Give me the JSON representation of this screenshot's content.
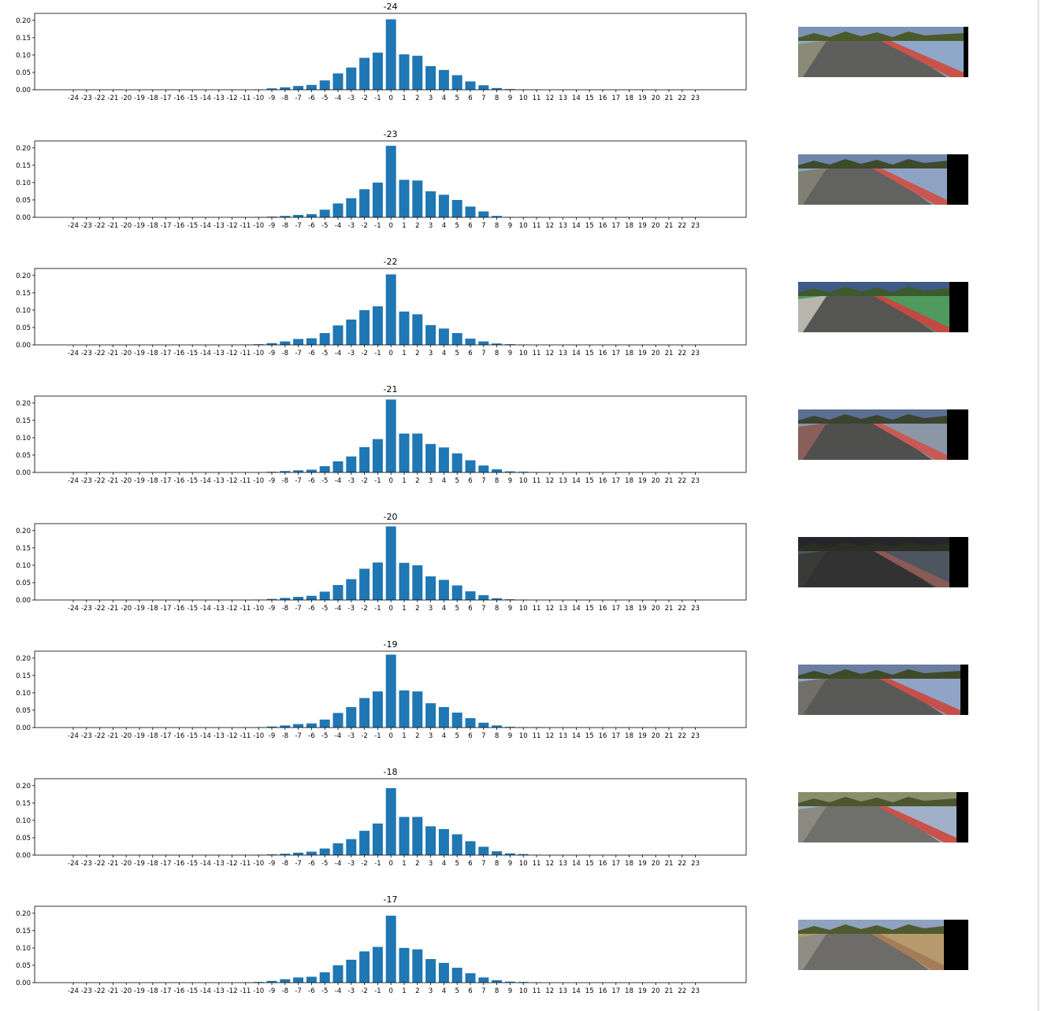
{
  "x_ticks": [
    "-24",
    "-23",
    "-22",
    "-21",
    "-20",
    "-19",
    "-18",
    "-17",
    "-16",
    "-15",
    "-14",
    "-13",
    "-12",
    "-11",
    "-10",
    "-9",
    "-8",
    "-7",
    "-6",
    "-5",
    "-4",
    "-3",
    "-2",
    "-1",
    "0",
    "1",
    "2",
    "3",
    "4",
    "5",
    "6",
    "7",
    "8",
    "9",
    "10",
    "11",
    "12",
    "13",
    "14",
    "15",
    "16",
    "17",
    "18",
    "19",
    "20",
    "21",
    "22",
    "23"
  ],
  "y_ticks": [
    "0.00",
    "0.05",
    "0.10",
    "0.15",
    "0.20"
  ],
  "bar_color": "#1f77b4",
  "chart_data": [
    {
      "type": "bar",
      "title": "-24",
      "ylim": [
        0,
        0.22
      ],
      "categories_ref": "x_ticks",
      "values": [
        0,
        0,
        0,
        0,
        0,
        0,
        0,
        0,
        0,
        0,
        0,
        0,
        0,
        0,
        0.001,
        0.004,
        0.007,
        0.011,
        0.014,
        0.027,
        0.047,
        0.064,
        0.092,
        0.107,
        0.203,
        0.102,
        0.098,
        0.068,
        0.057,
        0.042,
        0.024,
        0.013,
        0.005,
        0.002,
        0.001,
        0.001,
        0,
        0,
        0,
        0,
        0,
        0,
        0,
        0,
        0,
        0,
        0,
        0
      ]
    },
    {
      "type": "bar",
      "title": "-23",
      "ylim": [
        0,
        0.22
      ],
      "categories_ref": "x_ticks",
      "values": [
        0,
        0,
        0,
        0,
        0,
        0,
        0,
        0,
        0,
        0,
        0,
        0,
        0,
        0,
        0.001,
        0.002,
        0.004,
        0.007,
        0.009,
        0.022,
        0.04,
        0.055,
        0.081,
        0.1,
        0.206,
        0.108,
        0.106,
        0.075,
        0.065,
        0.05,
        0.031,
        0.017,
        0.004,
        0.001,
        0.001,
        0.001,
        0,
        0,
        0,
        0,
        0,
        0,
        0,
        0,
        0,
        0,
        0,
        0
      ]
    },
    {
      "type": "bar",
      "title": "-22",
      "ylim": [
        0,
        0.22
      ],
      "categories_ref": "x_ticks",
      "values": [
        0,
        0,
        0,
        0,
        0,
        0,
        0,
        0,
        0,
        0,
        0,
        0,
        0,
        0.001,
        0.002,
        0.005,
        0.01,
        0.017,
        0.019,
        0.034,
        0.056,
        0.073,
        0.1,
        0.111,
        0.203,
        0.096,
        0.088,
        0.057,
        0.047,
        0.034,
        0.018,
        0.01,
        0.004,
        0.002,
        0.001,
        0,
        0,
        0,
        0,
        0,
        0,
        0,
        0,
        0,
        0,
        0,
        0,
        0
      ]
    },
    {
      "type": "bar",
      "title": "-21",
      "ylim": [
        0,
        0.22
      ],
      "categories_ref": "x_ticks",
      "values": [
        0,
        0,
        0,
        0,
        0,
        0,
        0,
        0,
        0,
        0,
        0,
        0,
        0,
        0,
        0,
        0.002,
        0.004,
        0.006,
        0.008,
        0.018,
        0.032,
        0.046,
        0.073,
        0.096,
        0.21,
        0.112,
        0.112,
        0.082,
        0.072,
        0.055,
        0.035,
        0.02,
        0.009,
        0.003,
        0.002,
        0.001,
        0,
        0,
        0,
        0,
        0,
        0,
        0,
        0,
        0,
        0,
        0,
        0
      ]
    },
    {
      "type": "bar",
      "title": "-20",
      "ylim": [
        0,
        0.22
      ],
      "categories_ref": "x_ticks",
      "values": [
        0,
        0,
        0,
        0,
        0,
        0,
        0,
        0,
        0,
        0,
        0,
        0,
        0,
        0,
        0.001,
        0.003,
        0.006,
        0.009,
        0.012,
        0.024,
        0.043,
        0.06,
        0.09,
        0.108,
        0.212,
        0.107,
        0.1,
        0.068,
        0.058,
        0.042,
        0.025,
        0.014,
        0.005,
        0.002,
        0.001,
        0,
        0,
        0,
        0,
        0,
        0,
        0,
        0,
        0,
        0,
        0,
        0,
        0
      ]
    },
    {
      "type": "bar",
      "title": "-19",
      "ylim": [
        0,
        0.22
      ],
      "categories_ref": "x_ticks",
      "values": [
        0,
        0,
        0,
        0,
        0,
        0,
        0,
        0,
        0,
        0,
        0,
        0,
        0,
        0,
        0.001,
        0.003,
        0.006,
        0.01,
        0.012,
        0.023,
        0.042,
        0.059,
        0.085,
        0.104,
        0.21,
        0.107,
        0.104,
        0.07,
        0.059,
        0.043,
        0.027,
        0.014,
        0.006,
        0.002,
        0.001,
        0.001,
        0,
        0,
        0,
        0,
        0,
        0,
        0,
        0,
        0,
        0,
        0,
        0
      ]
    },
    {
      "type": "bar",
      "title": "-18",
      "ylim": [
        0,
        0.22
      ],
      "categories_ref": "x_ticks",
      "values": [
        0,
        0,
        0,
        0,
        0,
        0,
        0,
        0,
        0,
        0,
        0,
        0,
        0,
        0,
        0.001,
        0.002,
        0.004,
        0.007,
        0.01,
        0.019,
        0.034,
        0.046,
        0.07,
        0.091,
        0.193,
        0.11,
        0.11,
        0.083,
        0.075,
        0.06,
        0.04,
        0.024,
        0.011,
        0.005,
        0.003,
        0.001,
        0,
        0,
        0,
        0,
        0,
        0,
        0,
        0,
        0,
        0,
        0,
        0
      ]
    },
    {
      "type": "bar",
      "title": "-17",
      "ylim": [
        0,
        0.22
      ],
      "categories_ref": "x_ticks",
      "values": [
        0,
        0,
        0,
        0,
        0,
        0,
        0,
        0,
        0,
        0,
        0,
        0,
        0,
        0.001,
        0.002,
        0.005,
        0.01,
        0.015,
        0.017,
        0.03,
        0.05,
        0.066,
        0.09,
        0.103,
        0.193,
        0.1,
        0.096,
        0.068,
        0.057,
        0.043,
        0.027,
        0.015,
        0.007,
        0.003,
        0.002,
        0.001,
        0,
        0,
        0,
        0,
        0,
        0,
        0,
        0,
        0,
        0,
        0,
        0
      ]
    }
  ],
  "thumbnails": [
    {
      "name": "frame-1",
      "sky": "#7d93b5",
      "trees": "#4b5a2a",
      "left_bank": "#8a8a78",
      "road": "#5e5e5c",
      "right": "#8fa7c9",
      "stripe": "#c9524a",
      "black_w": 6
    },
    {
      "name": "frame-2",
      "sky": "#6f86ab",
      "trees": "#3e4a2c",
      "left_bank": "#7f7f74",
      "road": "#626260",
      "right": "#8ea3c4",
      "stripe": "#c9574f",
      "black_w": 27
    },
    {
      "name": "frame-3",
      "sky": "#3f5a86",
      "trees": "#3d5a2e",
      "left_bank": "#b6b6ad",
      "road": "#555553",
      "right": "#4f9a5c",
      "stripe": "#c24a43",
      "black_w": 24
    },
    {
      "name": "frame-4",
      "sky": "#5c6f93",
      "trees": "#3a4430",
      "left_bank": "#8a5f5a",
      "road": "#4f4f4e",
      "right": "#8b97a6",
      "stripe": "#c75a55",
      "black_w": 27
    },
    {
      "name": "frame-5",
      "sky": "#24262a",
      "trees": "#2b2e22",
      "left_bank": "#3a3a38",
      "road": "#323232",
      "right": "#4d5560",
      "stripe": "#8a5a55",
      "black_w": 24
    },
    {
      "name": "frame-6",
      "sky": "#6a7ea0",
      "trees": "#3f4a28",
      "left_bank": "#707068",
      "road": "#595957",
      "right": "#8fa4c6",
      "stripe": "#c4504a",
      "black_w": 10
    },
    {
      "name": "frame-7",
      "sky": "#8a8f6a",
      "trees": "#4d5530",
      "left_bank": "#8a8a80",
      "road": "#6f6f6b",
      "right": "#a0b0c8",
      "stripe": "#c9524a",
      "black_w": 15
    },
    {
      "name": "frame-8",
      "sky": "#8fa3bf",
      "trees": "#4f5a30",
      "left_bank": "#8e8e84",
      "road": "#6d6c68",
      "right": "#b59a6e",
      "stripe": "#a47c58",
      "black_w": 31
    }
  ]
}
